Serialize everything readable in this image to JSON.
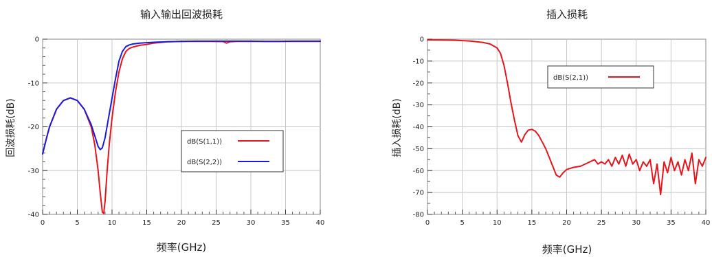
{
  "chart_data": [
    {
      "type": "line",
      "title": "输入输出回波损耗",
      "xlabel": "频率(GHz)",
      "ylabel": "回波损耗(dB)",
      "xlim": [
        0,
        40
      ],
      "ylim": [
        -40,
        0
      ],
      "xticks": [
        0,
        5,
        10,
        15,
        20,
        25,
        30,
        35,
        40
      ],
      "yticks": [
        0,
        -10,
        -20,
        -30,
        -40
      ],
      "grid": true,
      "legend_position": "lower-right",
      "series": [
        {
          "name": "dB(S(1,1))",
          "color": "#e8141c",
          "x": [
            0,
            0.5,
            1,
            2,
            3,
            4,
            5,
            6,
            7,
            7.5,
            8,
            8.3,
            8.6,
            8.8,
            9,
            9.3,
            9.6,
            10,
            10.5,
            11,
            11.5,
            12,
            12.5,
            13,
            14,
            15,
            16,
            18,
            20,
            22,
            24,
            26,
            26.5,
            27,
            28,
            30,
            32,
            34,
            36,
            38,
            40
          ],
          "y": [
            -26.2,
            -23,
            -20,
            -16,
            -14,
            -13.4,
            -14,
            -16,
            -20,
            -24,
            -30,
            -35,
            -39.5,
            -39.8,
            -37,
            -30,
            -24,
            -18,
            -12,
            -7.5,
            -4.5,
            -2.8,
            -2.1,
            -1.8,
            -1.4,
            -1.2,
            -0.9,
            -0.6,
            -0.5,
            -0.5,
            -0.5,
            -0.55,
            -0.9,
            -0.6,
            -0.5,
            -0.5,
            -0.5,
            -0.5,
            -0.5,
            -0.5,
            -0.5
          ]
        },
        {
          "name": "dB(S(2,2))",
          "color": "#1a1adc",
          "x": [
            0,
            0.5,
            1,
            2,
            3,
            4,
            5,
            6,
            7,
            7.5,
            8,
            8.3,
            8.6,
            9,
            9.5,
            10,
            10.5,
            11,
            11.5,
            12,
            12.5,
            13,
            14,
            15,
            16,
            18,
            20,
            22,
            24,
            26,
            28,
            30,
            32,
            34,
            36,
            38,
            40
          ],
          "y": [
            -26.2,
            -23,
            -20,
            -16,
            -14,
            -13.4,
            -14,
            -16,
            -19.5,
            -22,
            -24.5,
            -25.2,
            -24.8,
            -22.5,
            -18,
            -13.5,
            -9,
            -5,
            -2.8,
            -1.7,
            -1.3,
            -1.1,
            -0.9,
            -0.8,
            -0.7,
            -0.6,
            -0.5,
            -0.45,
            -0.45,
            -0.45,
            -0.45,
            -0.45,
            -0.5,
            -0.5,
            -0.45,
            -0.45,
            -0.45
          ]
        }
      ]
    },
    {
      "type": "line",
      "title": "插入损耗",
      "xlabel": "频率(GHz)",
      "ylabel": "插入损耗(dB)",
      "xlim": [
        0,
        40
      ],
      "ylim": [
        -80,
        0
      ],
      "xticks": [
        0,
        5,
        10,
        15,
        20,
        25,
        30,
        35,
        40
      ],
      "yticks": [
        0,
        -10,
        -20,
        -30,
        -40,
        -50,
        -60,
        -70,
        -80
      ],
      "grid": true,
      "legend_position": "upper-center",
      "series": [
        {
          "name": "dB(S(2,1))",
          "color": "#e8141c",
          "x": [
            0,
            2,
            4,
            6,
            8,
            9,
            10,
            10.5,
            11,
            11.5,
            12,
            12.5,
            13,
            13.5,
            14,
            14.5,
            15,
            15.5,
            16,
            16.5,
            17,
            17.5,
            18,
            18.5,
            19,
            19.5,
            20,
            21,
            22,
            23,
            24,
            24.5,
            25,
            25.5,
            26,
            26.5,
            27,
            27.5,
            28,
            28.5,
            29,
            29.5,
            30,
            30.5,
            31,
            31.5,
            32,
            32.5,
            33,
            33.5,
            34,
            34.5,
            35,
            35.5,
            36,
            36.5,
            37,
            37.5,
            38,
            38.5,
            39,
            39.5,
            40
          ],
          "y": [
            -0.3,
            -0.4,
            -0.5,
            -0.8,
            -1.5,
            -2.2,
            -4,
            -6.5,
            -12,
            -20,
            -29,
            -37,
            -44,
            -47,
            -43.5,
            -41.5,
            -41.2,
            -42,
            -44,
            -47,
            -50,
            -54,
            -58,
            -62,
            -63,
            -61,
            -59.5,
            -58.5,
            -58,
            -56.5,
            -55,
            -57,
            -56,
            -57,
            -55,
            -58,
            -54,
            -57,
            -53,
            -58,
            -52.5,
            -57,
            -55,
            -60,
            -56,
            -58,
            -55,
            -66,
            -57,
            -71,
            -56,
            -61,
            -54,
            -60,
            -56,
            -62,
            -55,
            -60,
            -52,
            -66,
            -55,
            -58,
            -54
          ]
        }
      ]
    }
  ]
}
